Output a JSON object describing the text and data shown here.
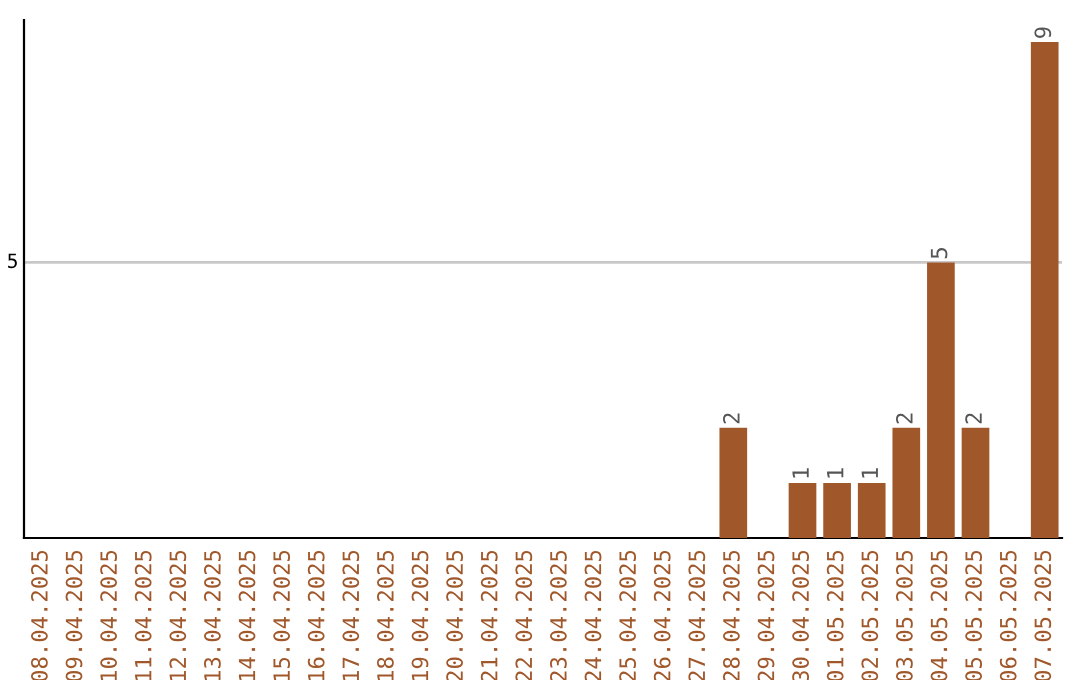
{
  "chart_data": {
    "type": "bar",
    "categories": [
      "08.04.2025",
      "09.04.2025",
      "10.04.2025",
      "11.04.2025",
      "12.04.2025",
      "13.04.2025",
      "14.04.2025",
      "15.04.2025",
      "16.04.2025",
      "17.04.2025",
      "18.04.2025",
      "19.04.2025",
      "20.04.2025",
      "21.04.2025",
      "22.04.2025",
      "23.04.2025",
      "24.04.2025",
      "25.04.2025",
      "26.04.2025",
      "27.04.2025",
      "28.04.2025",
      "29.04.2025",
      "30.04.2025",
      "01.05.2025",
      "02.05.2025",
      "03.05.2025",
      "04.05.2025",
      "05.05.2025",
      "06.05.2025",
      "07.05.2025"
    ],
    "values": [
      null,
      null,
      null,
      null,
      null,
      null,
      null,
      null,
      null,
      null,
      null,
      null,
      null,
      null,
      null,
      null,
      null,
      null,
      null,
      null,
      2,
      null,
      1,
      1,
      1,
      2,
      5,
      2,
      null,
      9
    ],
    "data_labels": true,
    "color": "#a0572a",
    "ylim": [
      0,
      9.4
    ],
    "yticks": [
      5
    ],
    "grid": "y",
    "legend": false
  }
}
